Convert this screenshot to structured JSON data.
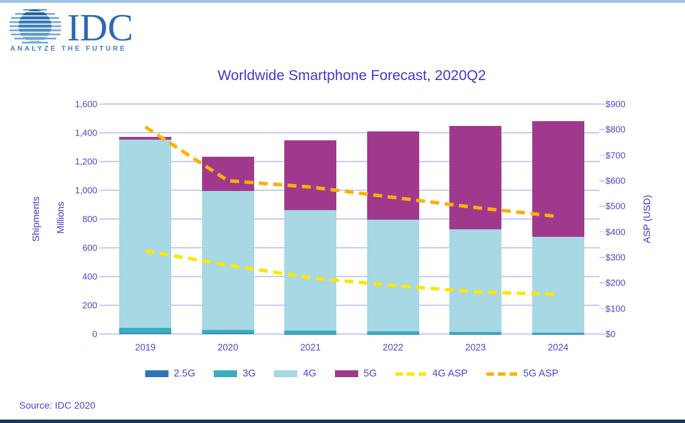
{
  "window": {
    "top_border_color": "#9DC3E6",
    "bottom_border_color": "#17375E"
  },
  "logo": {
    "text": "IDC",
    "tagline": "ANALYZE THE FUTURE",
    "globe_icon": "striped-globe",
    "text_color": "#2A6BB0",
    "tagline_color": "#4380B8"
  },
  "chart_data": {
    "type": "bar",
    "subtype": "stacked-bars-with-dashed-asp-lines",
    "title": "Worldwide Smartphone Forecast, 2020Q2",
    "categories": [
      "2019",
      "2020",
      "2021",
      "2022",
      "2023",
      "2024"
    ],
    "bar_series": [
      {
        "name": "2.5G",
        "color": "#2E75B6",
        "values": [
          5,
          3,
          2,
          1,
          1,
          1
        ]
      },
      {
        "name": "3G",
        "color": "#38AEC0",
        "values": [
          40,
          25,
          20,
          16,
          12,
          8
        ]
      },
      {
        "name": "4G",
        "color": "#A7D8E3",
        "values": [
          1308,
          965,
          838,
          778,
          718,
          668
        ]
      },
      {
        "name": "5G",
        "color": "#A0398E",
        "values": [
          20,
          240,
          490,
          615,
          715,
          805
        ]
      }
    ],
    "bar_totals": [
      1373,
      1233,
      1350,
      1410,
      1446,
      1482
    ],
    "line_series": [
      {
        "name": "4G ASP",
        "color": "#FFE600",
        "values": [
          325,
          270,
          220,
          190,
          165,
          155
        ]
      },
      {
        "name": "5G ASP",
        "color": "#FFB000",
        "values": [
          810,
          600,
          575,
          535,
          495,
          460
        ]
      }
    ],
    "left_axis": {
      "title_line1": "Shipments",
      "title_line2": "Millions",
      "min": 0,
      "max": 1600,
      "step": 200,
      "tick_labels": [
        "1,600",
        "1,400",
        "1,200",
        "1,000",
        "800",
        "600",
        "400",
        "200",
        "0"
      ]
    },
    "right_axis": {
      "title": "ASP (USD)",
      "min": 0,
      "max": 900,
      "step": 100,
      "tick_labels": [
        "$900",
        "$800",
        "$700",
        "$600",
        "$500",
        "$400",
        "$300",
        "$200",
        "$100",
        "$0"
      ]
    },
    "legend": [
      "2.5G",
      "3G",
      "4G",
      "5G",
      "4G ASP",
      "5G ASP"
    ],
    "legend_position": "bottom",
    "grid": "horizontal"
  },
  "source_note": "Source: IDC 2020"
}
